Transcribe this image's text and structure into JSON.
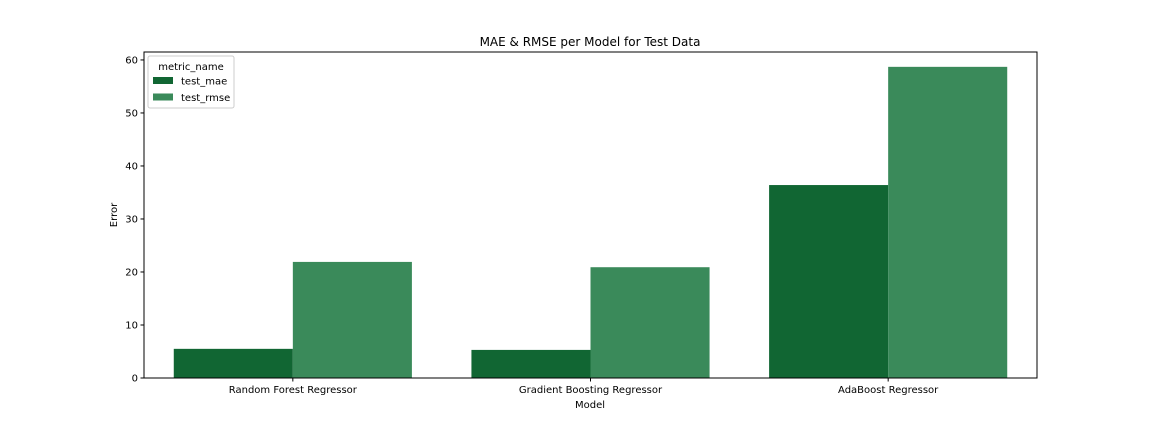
{
  "chart_data": {
    "type": "bar",
    "title": "MAE & RMSE per Model for Test Data",
    "xlabel": "Model",
    "ylabel": "Error",
    "ylim": [
      0,
      61.5
    ],
    "yticks": [
      0,
      10,
      20,
      30,
      40,
      50,
      60
    ],
    "categories": [
      "Random Forest Regressor",
      "Gradient Boosting Regressor",
      "AdaBoost Regressor"
    ],
    "series": [
      {
        "name": "test_mae",
        "color": "#116633",
        "values": [
          5.5,
          5.3,
          36.4
        ]
      },
      {
        "name": "test_rmse",
        "color": "#3a8a5a",
        "values": [
          21.9,
          20.9,
          58.7
        ]
      }
    ],
    "legend": {
      "title": "metric_name",
      "placement": "upper-left"
    },
    "grid": false
  }
}
